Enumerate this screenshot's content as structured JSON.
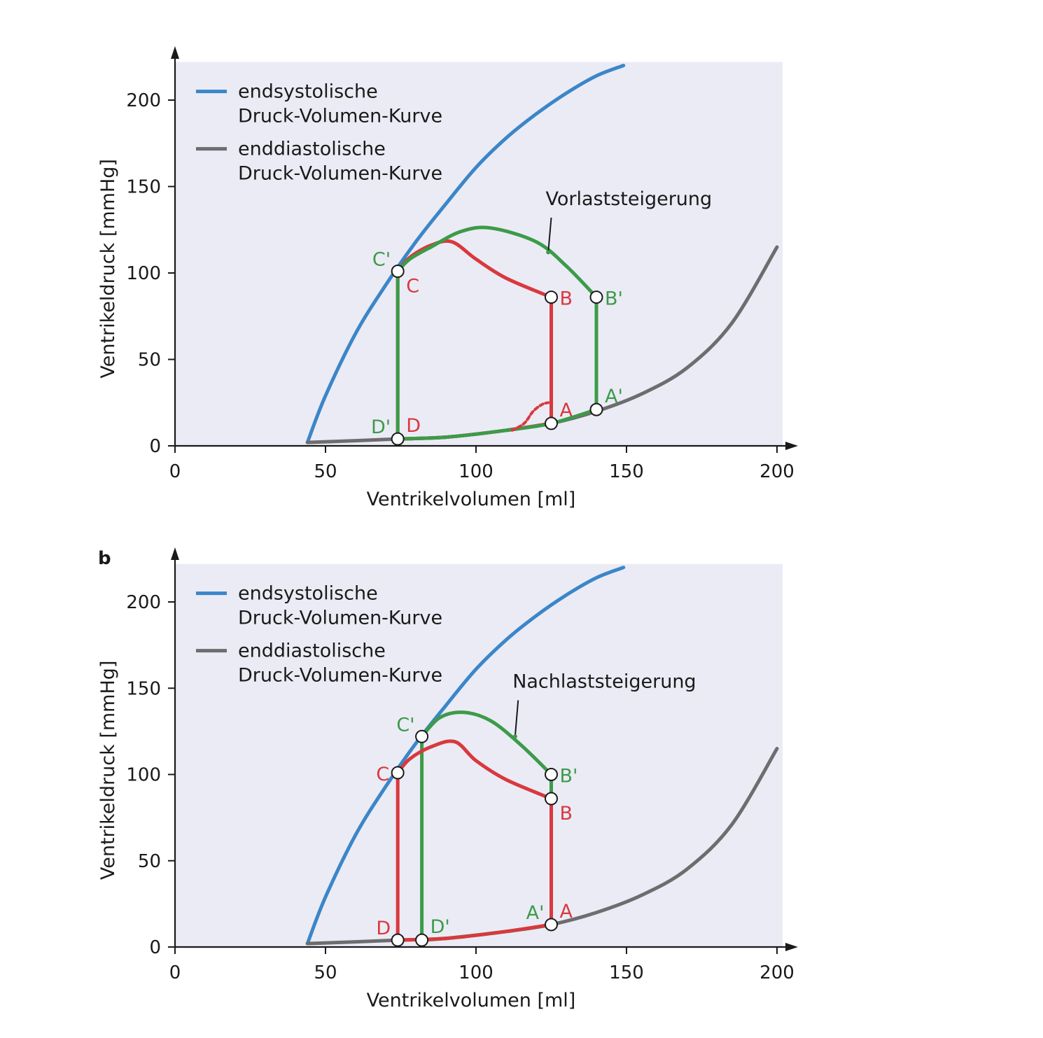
{
  "panel_labels": [
    "",
    "b"
  ],
  "colors": {
    "esp": "#3b86c8",
    "edp": "#6d6d6f",
    "base_loop": "#d8393e",
    "shifted_loop": "#3c9b48",
    "plot_bg": "#ebebf5",
    "axis": "#1a1a1a"
  },
  "chart_data": [
    {
      "type": "line",
      "panel": "a",
      "xlabel": "Ventrikelvolumen [ml]",
      "ylabel": "Ventrikeldruck [mmHg]",
      "xlim": [
        0,
        200
      ],
      "ylim": [
        0,
        200
      ],
      "xticks": [
        0,
        50,
        100,
        150,
        200
      ],
      "yticks": [
        0,
        50,
        100,
        150,
        200
      ],
      "legend": {
        "placement": "top-left",
        "entries": [
          {
            "line1": "endsystolische",
            "line2": "Druck-Volumen-Kurve",
            "color": "#3b86c8"
          },
          {
            "line1": "enddiastolische",
            "line2": "Druck-Volumen-Kurve",
            "color": "#6d6d6f"
          }
        ]
      },
      "annotation": "Vorlaststeigerung",
      "series": [
        {
          "role": "esp",
          "color": "#3b86c8",
          "points": [
            [
              44,
              2
            ],
            [
              50,
              29
            ],
            [
              60,
              65
            ],
            [
              70,
              93
            ],
            [
              80,
              118
            ],
            [
              90,
              140
            ],
            [
              100,
              161
            ],
            [
              110,
              178
            ],
            [
              120,
              192
            ],
            [
              130,
              204
            ],
            [
              140,
              214
            ],
            [
              149,
              220
            ]
          ]
        },
        {
          "role": "edp",
          "color": "#6d6d6f",
          "points": [
            [
              44,
              2
            ],
            [
              60,
              3
            ],
            [
              74,
              4
            ],
            [
              90,
              5
            ],
            [
              110,
              9
            ],
            [
              125,
              13
            ],
            [
              140,
              20
            ],
            [
              155,
              30
            ],
            [
              170,
              45
            ],
            [
              185,
              71
            ],
            [
              200,
              115
            ]
          ]
        },
        {
          "role": "loop",
          "color": "#d8393e",
          "points": [
            [
              74,
              4
            ],
            [
              90,
              5
            ],
            [
              110,
              9
            ],
            [
              125,
              13
            ],
            [
              125,
              86
            ],
            [
              110,
              97
            ],
            [
              100,
              108
            ],
            [
              92,
              118
            ],
            [
              85,
              116
            ],
            [
              78,
              109
            ],
            [
              74,
              101
            ],
            [
              74,
              4
            ]
          ]
        },
        {
          "role": "loop",
          "color": "#3c9b48",
          "points": [
            [
              74,
              4
            ],
            [
              90,
              5
            ],
            [
              110,
              9
            ],
            [
              125,
              13
            ],
            [
              140,
              21
            ],
            [
              140,
              86
            ],
            [
              130,
              104
            ],
            [
              120,
              118
            ],
            [
              105,
              126
            ],
            [
              95,
              124
            ],
            [
              85,
              115
            ],
            [
              78,
              108
            ],
            [
              74,
              101
            ],
            [
              74,
              4
            ]
          ]
        },
        {
          "role": "dashed",
          "color": "#d8393e",
          "points": [
            [
              112,
              9
            ],
            [
              116,
              13
            ],
            [
              119,
              20
            ],
            [
              122,
              24
            ],
            [
              124,
              25
            ]
          ]
        }
      ],
      "pointer": {
        "color": "#3c9b48",
        "from": [
          125,
          132
        ],
        "to": [
          124,
          112
        ]
      },
      "markers": [
        {
          "x": 74,
          "y": 101,
          "labels": [
            {
              "text": "C'",
              "color": "#3c9b48",
              "side": "above-left"
            },
            {
              "text": "C",
              "color": "#d8393e",
              "side": "below-right"
            }
          ]
        },
        {
          "x": 125,
          "y": 86,
          "labels": [
            {
              "text": "B",
              "color": "#d8393e",
              "side": "right"
            }
          ]
        },
        {
          "x": 140,
          "y": 86,
          "labels": [
            {
              "text": "B'",
              "color": "#3c9b48",
              "side": "right"
            }
          ]
        },
        {
          "x": 125,
          "y": 13,
          "labels": [
            {
              "text": "A",
              "color": "#d8393e",
              "side": "above-right"
            }
          ]
        },
        {
          "x": 140,
          "y": 21,
          "labels": [
            {
              "text": "A'",
              "color": "#3c9b48",
              "side": "above-right"
            }
          ]
        },
        {
          "x": 74,
          "y": 4,
          "labels": [
            {
              "text": "D'",
              "color": "#3c9b48",
              "side": "above-left"
            },
            {
              "text": "D",
              "color": "#d8393e",
              "side": "above-right"
            }
          ]
        }
      ]
    },
    {
      "type": "line",
      "panel": "b",
      "xlabel": "Ventrikelvolumen [ml]",
      "ylabel": "Ventrikeldruck [mmHg]",
      "xlim": [
        0,
        200
      ],
      "ylim": [
        0,
        200
      ],
      "xticks": [
        0,
        50,
        100,
        150,
        200
      ],
      "yticks": [
        0,
        50,
        100,
        150,
        200
      ],
      "legend": {
        "placement": "top-left",
        "entries": [
          {
            "line1": "endsystolische",
            "line2": "Druck-Volumen-Kurve",
            "color": "#3b86c8"
          },
          {
            "line1": "enddiastolische",
            "line2": "Druck-Volumen-Kurve",
            "color": "#6d6d6f"
          }
        ]
      },
      "annotation": "Nachlaststeigerung",
      "series": [
        {
          "role": "esp",
          "color": "#3b86c8",
          "points": [
            [
              44,
              2
            ],
            [
              50,
              29
            ],
            [
              60,
              65
            ],
            [
              70,
              93
            ],
            [
              80,
              118
            ],
            [
              90,
              140
            ],
            [
              100,
              161
            ],
            [
              110,
              178
            ],
            [
              120,
              192
            ],
            [
              130,
              204
            ],
            [
              140,
              214
            ],
            [
              149,
              220
            ]
          ]
        },
        {
          "role": "edp",
          "color": "#6d6d6f",
          "points": [
            [
              44,
              2
            ],
            [
              60,
              3
            ],
            [
              74,
              4
            ],
            [
              90,
              5
            ],
            [
              110,
              9
            ],
            [
              125,
              13
            ],
            [
              140,
              20
            ],
            [
              155,
              30
            ],
            [
              170,
              45
            ],
            [
              185,
              71
            ],
            [
              200,
              115
            ]
          ]
        },
        {
          "role": "loop",
          "color": "#3c9b48",
          "points": [
            [
              82,
              4
            ],
            [
              90,
              5
            ],
            [
              110,
              9
            ],
            [
              125,
              13
            ],
            [
              125,
              100
            ],
            [
              115,
              117
            ],
            [
              105,
              131
            ],
            [
              96,
              136
            ],
            [
              88,
              133
            ],
            [
              82,
              122
            ],
            [
              82,
              4
            ]
          ]
        },
        {
          "role": "loop",
          "color": "#d8393e",
          "points": [
            [
              74,
              4
            ],
            [
              90,
              5
            ],
            [
              110,
              9
            ],
            [
              125,
              13
            ],
            [
              125,
              86
            ],
            [
              110,
              97
            ],
            [
              100,
              108
            ],
            [
              93,
              119
            ],
            [
              85,
              116
            ],
            [
              78,
              109
            ],
            [
              74,
              101
            ],
            [
              74,
              4
            ]
          ]
        }
      ],
      "pointer": {
        "color": "#3c9b48",
        "from": [
          114,
          143
        ],
        "to": [
          113,
          122
        ]
      },
      "markers": [
        {
          "x": 82,
          "y": 122,
          "labels": [
            {
              "text": "C'",
              "color": "#3c9b48",
              "side": "above-left"
            }
          ]
        },
        {
          "x": 74,
          "y": 101,
          "labels": [
            {
              "text": "C",
              "color": "#d8393e",
              "side": "left"
            }
          ]
        },
        {
          "x": 125,
          "y": 100,
          "labels": [
            {
              "text": "B'",
              "color": "#3c9b48",
              "side": "right"
            }
          ]
        },
        {
          "x": 125,
          "y": 86,
          "labels": [
            {
              "text": "B",
              "color": "#d8393e",
              "side": "below-right"
            }
          ]
        },
        {
          "x": 125,
          "y": 13,
          "labels": [
            {
              "text": "A'",
              "color": "#3c9b48",
              "side": "above-left"
            },
            {
              "text": "A",
              "color": "#d8393e",
              "side": "above-right"
            }
          ]
        },
        {
          "x": 74,
          "y": 4,
          "labels": [
            {
              "text": "D",
              "color": "#d8393e",
              "side": "above-left"
            }
          ]
        },
        {
          "x": 82,
          "y": 4,
          "labels": [
            {
              "text": "D'",
              "color": "#3c9b48",
              "side": "above-right"
            }
          ]
        }
      ]
    }
  ]
}
